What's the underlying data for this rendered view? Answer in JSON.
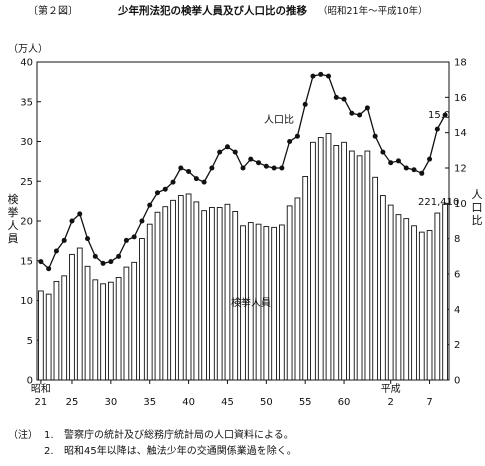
{
  "header": {
    "figure_label": "〔第２図〕",
    "title": "少年刑法犯の検挙人員及び人口比の推移",
    "subtitle": "（昭和21年～平成10年）"
  },
  "chart_data": {
    "type": "bar",
    "left_unit": "（万人）",
    "left_axis_label": [
      "検",
      "挙",
      "人",
      "員"
    ],
    "right_axis_label": [
      "人",
      "口",
      "比"
    ],
    "left_ticks": [
      0,
      5,
      10,
      15,
      20,
      25,
      30,
      35,
      40
    ],
    "right_ticks": [
      0,
      2,
      4,
      6,
      8,
      10,
      12,
      14,
      16,
      18
    ],
    "ylim_left": [
      0,
      40
    ],
    "ylim_right": [
      0,
      18
    ],
    "x_tick_labels": [
      {
        "year_index": 0,
        "label": "21",
        "era": "昭和"
      },
      {
        "year_index": 4,
        "label": "25"
      },
      {
        "year_index": 9,
        "label": "30"
      },
      {
        "year_index": 14,
        "label": "35"
      },
      {
        "year_index": 19,
        "label": "40"
      },
      {
        "year_index": 24,
        "label": "45"
      },
      {
        "year_index": 29,
        "label": "50"
      },
      {
        "year_index": 34,
        "label": "55"
      },
      {
        "year_index": 39,
        "label": "60"
      },
      {
        "year_index": 45,
        "label": "2",
        "era": "平成"
      },
      {
        "year_index": 50,
        "label": "7"
      }
    ],
    "years": [
      "昭和21",
      "昭和22",
      "昭和23",
      "昭和24",
      "昭和25",
      "昭和26",
      "昭和27",
      "昭和28",
      "昭和29",
      "昭和30",
      "昭和31",
      "昭和32",
      "昭和33",
      "昭和34",
      "昭和35",
      "昭和36",
      "昭和37",
      "昭和38",
      "昭和39",
      "昭和40",
      "昭和41",
      "昭和42",
      "昭和43",
      "昭和44",
      "昭和45",
      "昭和46",
      "昭和47",
      "昭和48",
      "昭和49",
      "昭和50",
      "昭和51",
      "昭和52",
      "昭和53",
      "昭和54",
      "昭和55",
      "昭和56",
      "昭和57",
      "昭和58",
      "昭和59",
      "昭和60",
      "昭和61",
      "昭和62",
      "昭和63",
      "平成元",
      "平成2",
      "平成3",
      "平成4",
      "平成5",
      "平成6",
      "平成7",
      "平成8",
      "平成9",
      "平成10"
    ],
    "series": [
      {
        "name": "検挙人員",
        "kind": "bar",
        "unit": "万人",
        "values": [
          11.2,
          10.8,
          12.4,
          13.1,
          15.8,
          16.6,
          14.3,
          12.6,
          12.1,
          12.3,
          12.9,
          14.2,
          14.8,
          17.8,
          19.6,
          21.1,
          21.8,
          22.6,
          23.2,
          23.4,
          22.4,
          21.3,
          21.7,
          21.7,
          22.1,
          21.2,
          19.4,
          19.8,
          19.6,
          19.3,
          19.2,
          19.5,
          21.9,
          22.9,
          25.6,
          29.9,
          30.5,
          31.0,
          29.5,
          29.9,
          28.8,
          28.2,
          28.8,
          25.5,
          23.2,
          22.0,
          20.8,
          20.3,
          19.4,
          18.6,
          18.8,
          21.0,
          22.1
        ]
      },
      {
        "name": "人口比",
        "kind": "line",
        "values": [
          6.7,
          6.3,
          7.3,
          7.9,
          9.0,
          9.4,
          8.0,
          7.0,
          6.6,
          6.7,
          7.0,
          7.9,
          8.1,
          9.0,
          9.9,
          10.6,
          10.8,
          11.2,
          12.0,
          11.8,
          11.4,
          11.2,
          12.0,
          12.9,
          13.2,
          12.9,
          12.0,
          12.5,
          12.3,
          12.1,
          12.0,
          12.0,
          13.5,
          13.8,
          15.6,
          17.2,
          17.3,
          17.2,
          16.0,
          15.9,
          15.1,
          15.0,
          15.4,
          13.8,
          12.9,
          12.3,
          12.4,
          12.0,
          11.9,
          11.7,
          12.5,
          14.2,
          15.0
        ]
      }
    ],
    "annotations": {
      "bar_series_label": "検挙人員",
      "line_series_label": "人口比",
      "last_line_value": "15.0",
      "last_bar_value": "221,410"
    },
    "legend": "none",
    "grid": false
  },
  "notes": {
    "head": "（注）",
    "items": [
      {
        "num": "1.",
        "text": "警察庁の統計及び総務庁統計局の人口資料による。"
      },
      {
        "num": "2.",
        "text": "昭和45年以降は、触法少年の交通関係業過を除く。"
      }
    ]
  }
}
